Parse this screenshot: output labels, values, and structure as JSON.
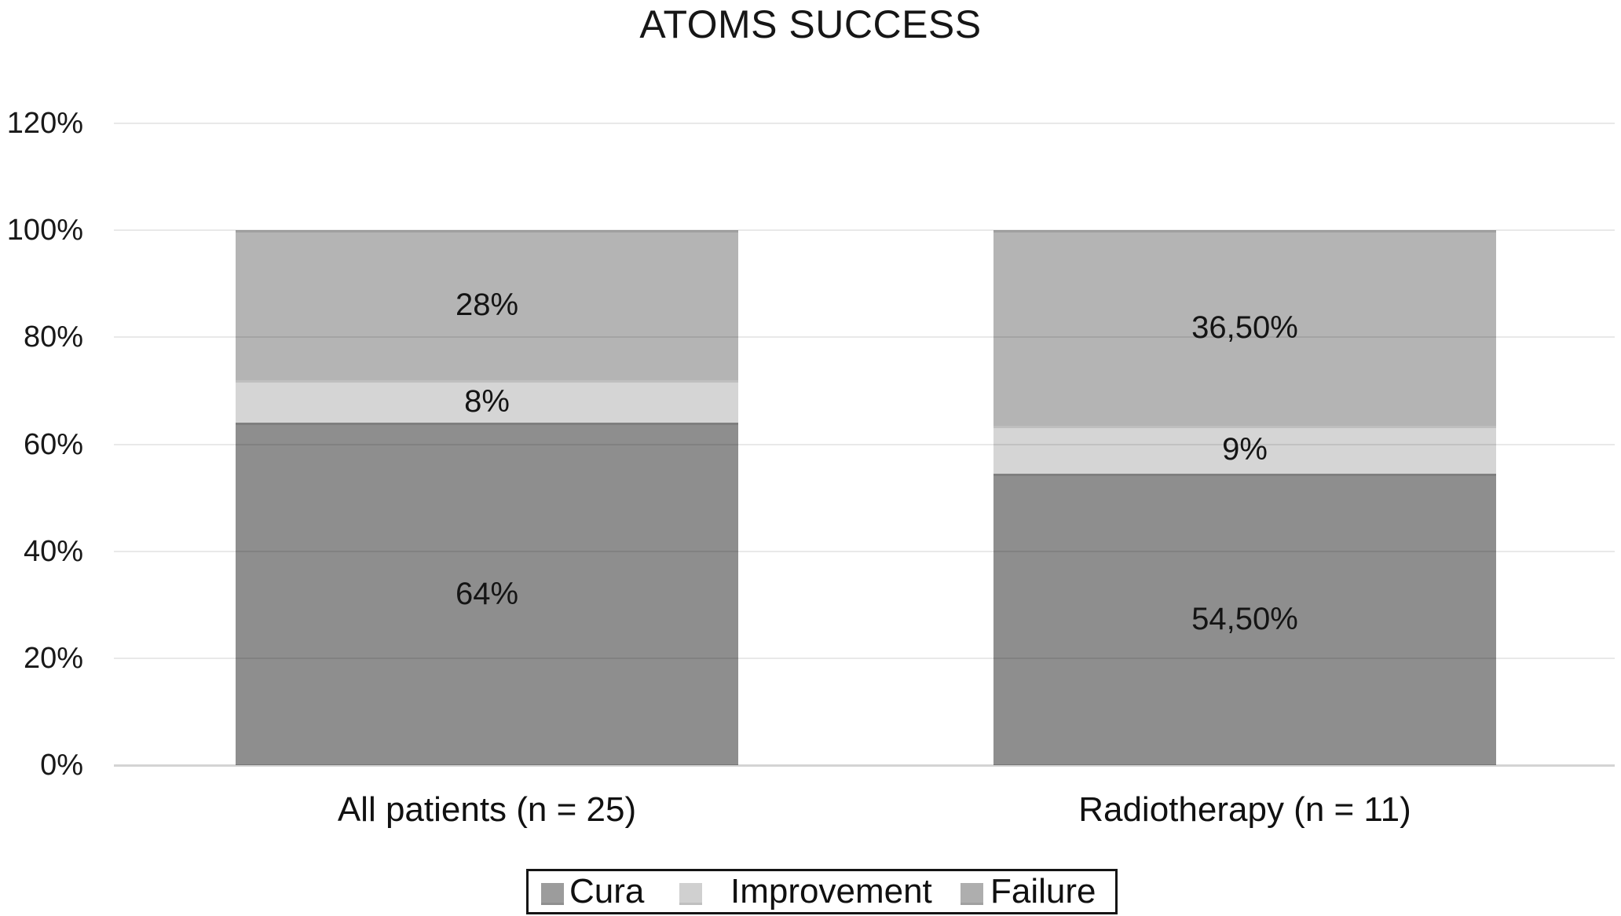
{
  "title": "ATOMS SUCCESS",
  "chart_data": {
    "type": "bar",
    "stacked": true,
    "units": "percent",
    "title": "ATOMS SUCCESS",
    "categories": [
      "All patients (n = 25)",
      "Radiotherapy (n = 11)"
    ],
    "series": [
      {
        "name": "Cura",
        "values": [
          64,
          54.5
        ],
        "labels": [
          "64%",
          "54,50%"
        ],
        "color": "#8e8e8e",
        "legend_swatch": "#9c9c9c"
      },
      {
        "name": "Improvement",
        "values": [
          8,
          9
        ],
        "labels": [
          "8%",
          "9%"
        ],
        "color": "#d5d5d5",
        "legend_swatch": "#d0d0d0"
      },
      {
        "name": "Failure",
        "values": [
          28,
          36.5
        ],
        "labels": [
          "28%",
          "36,50%"
        ],
        "color": "#b4b4b4",
        "legend_swatch": "#aeaeae"
      }
    ],
    "y_axis": {
      "min": 0,
      "max": 120,
      "tick_values": [
        0,
        20,
        40,
        60,
        80,
        100,
        120
      ],
      "tick_labels": [
        "0%",
        "20%",
        "40%",
        "60%",
        "80%",
        "100%",
        "120%"
      ],
      "gridlines": true
    },
    "legend": {
      "position": "bottom",
      "bordered": true,
      "entries": [
        "Cura",
        "Improvement",
        "Failure"
      ]
    },
    "xlabel": "",
    "ylabel": ""
  }
}
